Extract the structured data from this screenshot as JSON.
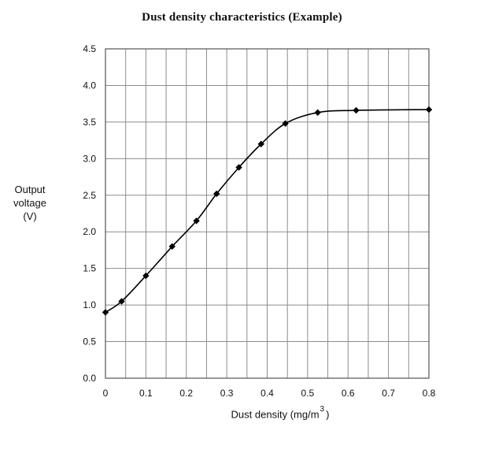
{
  "chart_data": {
    "type": "line",
    "title": "Dust density characteristics (Example)",
    "ylabel_lines": [
      "Output",
      "voltage",
      "(V)"
    ],
    "xlabel": {
      "prefix": "Dust density (mg/m",
      "superscript": "3",
      "suffix": ")"
    },
    "xlim": [
      0,
      0.8
    ],
    "ylim": [
      0,
      4.5
    ],
    "x_ticks": [
      0,
      0.1,
      0.2,
      0.3,
      0.4,
      0.5,
      0.6,
      0.7,
      0.8
    ],
    "x_tick_labels": [
      "0",
      "0.1",
      "0.2",
      "0.3",
      "0.4",
      "0.5",
      "0.6",
      "0.7",
      "0.8"
    ],
    "y_ticks": [
      0,
      0.5,
      1.0,
      1.5,
      2.0,
      2.5,
      3.0,
      3.5,
      4.0,
      4.5
    ],
    "y_tick_labels": [
      "0.0",
      "0.5",
      "1.0",
      "1.5",
      "2.0",
      "2.5",
      "3.0",
      "3.5",
      "4.0",
      "4.5"
    ],
    "x_minor_step": 0.05,
    "grid": true,
    "colors": {
      "line": "#000000",
      "grid": "#8c8c8c",
      "marker": "#000000"
    },
    "series": [
      {
        "marker": "diamond",
        "x": [
          0,
          0.04,
          0.1,
          0.165,
          0.225,
          0.275,
          0.33,
          0.385,
          0.445,
          0.525,
          0.62,
          0.8
        ],
        "y": [
          0.9,
          1.05,
          1.4,
          1.8,
          2.15,
          2.52,
          2.88,
          3.2,
          3.48,
          3.63,
          3.66,
          3.67
        ]
      }
    ]
  }
}
